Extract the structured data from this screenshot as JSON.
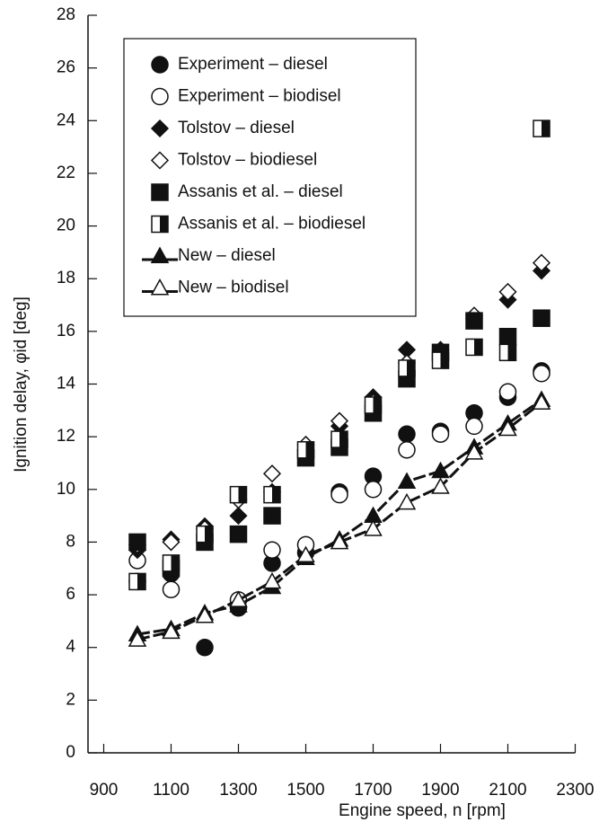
{
  "chart_data": {
    "type": "scatter",
    "xlabel": "Engine speed, n [rpm]",
    "ylabel": "Ignition delay, φid [deg]",
    "xlim": [
      900,
      2300
    ],
    "xticks": [
      900,
      1100,
      1300,
      1500,
      1700,
      1900,
      2100,
      2300
    ],
    "ylim": [
      0,
      28
    ],
    "yticks": [
      0,
      2,
      4,
      6,
      8,
      10,
      12,
      14,
      16,
      18,
      20,
      22,
      24,
      26,
      28
    ],
    "legend": "upper left",
    "series": [
      {
        "name": "Experiment – diesel",
        "color": "#111111",
        "marker": "circle-filled",
        "x": [
          1000,
          1100,
          1200,
          1300,
          1400,
          1500,
          1600,
          1700,
          1800,
          1900,
          2000,
          2100,
          2200
        ],
        "values": [
          6.5,
          6.8,
          4.0,
          5.5,
          7.2,
          7.6,
          9.9,
          10.5,
          12.1,
          12.2,
          12.9,
          13.5,
          14.5
        ]
      },
      {
        "name": "Experiment – biodisel",
        "color": "#111111",
        "marker": "circle-open",
        "x": [
          1000,
          1100,
          1300,
          1400,
          1500,
          1600,
          1700,
          1800,
          1900,
          2000,
          2100,
          2200
        ],
        "values": [
          7.3,
          6.2,
          5.8,
          7.7,
          7.9,
          9.8,
          10.0,
          11.5,
          12.1,
          12.4,
          13.7,
          14.4
        ]
      },
      {
        "name": "Tolstov – diesel",
        "color": "#111111",
        "marker": "diamond-filled",
        "x": [
          1000,
          1100,
          1200,
          1300,
          1400,
          1500,
          1600,
          1700,
          1800,
          1900,
          2000,
          2100,
          2200
        ],
        "values": [
          7.7,
          8.1,
          8.6,
          9.0,
          9.9,
          11.5,
          12.4,
          13.5,
          15.3,
          15.3,
          16.5,
          17.2,
          18.3
        ]
      },
      {
        "name": "Tolstov – biodiesel",
        "color": "#111111",
        "marker": "diamond-open",
        "x": [
          1000,
          1100,
          1200,
          1300,
          1400,
          1500,
          1600,
          1700,
          1800,
          1900,
          2000,
          2100,
          2200
        ],
        "values": [
          7.9,
          8.0,
          8.5,
          9.6,
          10.6,
          11.7,
          12.6,
          13.3,
          14.8,
          15.0,
          16.6,
          17.5,
          18.6
        ]
      },
      {
        "name": "Assanis et al. – diesel",
        "color": "#111111",
        "marker": "square-filled",
        "x": [
          1000,
          1100,
          1200,
          1300,
          1400,
          1500,
          1600,
          1700,
          1800,
          1900,
          2000,
          2100,
          2200
        ],
        "values": [
          8.0,
          7.0,
          8.0,
          8.3,
          9.0,
          11.2,
          11.6,
          12.9,
          14.2,
          15.2,
          16.4,
          15.8,
          16.5
        ]
      },
      {
        "name": "Assanis et al. – biodiesel",
        "color": "#111111",
        "marker": "square-half",
        "x": [
          1000,
          1100,
          1200,
          1300,
          1400,
          1500,
          1600,
          1700,
          1800,
          1900,
          2000,
          2100,
          2200
        ],
        "values": [
          6.5,
          7.2,
          8.3,
          9.8,
          9.8,
          11.5,
          11.9,
          13.2,
          14.6,
          14.9,
          15.4,
          15.2,
          23.7
        ]
      },
      {
        "name": "New – diesel",
        "color": "#111111",
        "marker": "triangle-filled",
        "line": true,
        "x": [
          1000,
          1100,
          1200,
          1300,
          1400,
          1500,
          1600,
          1700,
          1800,
          1900,
          2000,
          2100,
          2200
        ],
        "values": [
          4.5,
          4.7,
          5.3,
          5.6,
          6.3,
          7.4,
          8.1,
          9.0,
          10.3,
          10.7,
          11.6,
          12.5,
          13.4
        ]
      },
      {
        "name": "New – biodisel",
        "color": "#111111",
        "marker": "triangle-open",
        "line": true,
        "x": [
          1000,
          1100,
          1200,
          1300,
          1400,
          1500,
          1600,
          1700,
          1800,
          1900,
          2000,
          2100,
          2200
        ],
        "values": [
          4.3,
          4.6,
          5.2,
          5.8,
          6.5,
          7.5,
          8.0,
          8.5,
          9.5,
          10.1,
          11.4,
          12.3,
          13.3
        ]
      }
    ]
  }
}
